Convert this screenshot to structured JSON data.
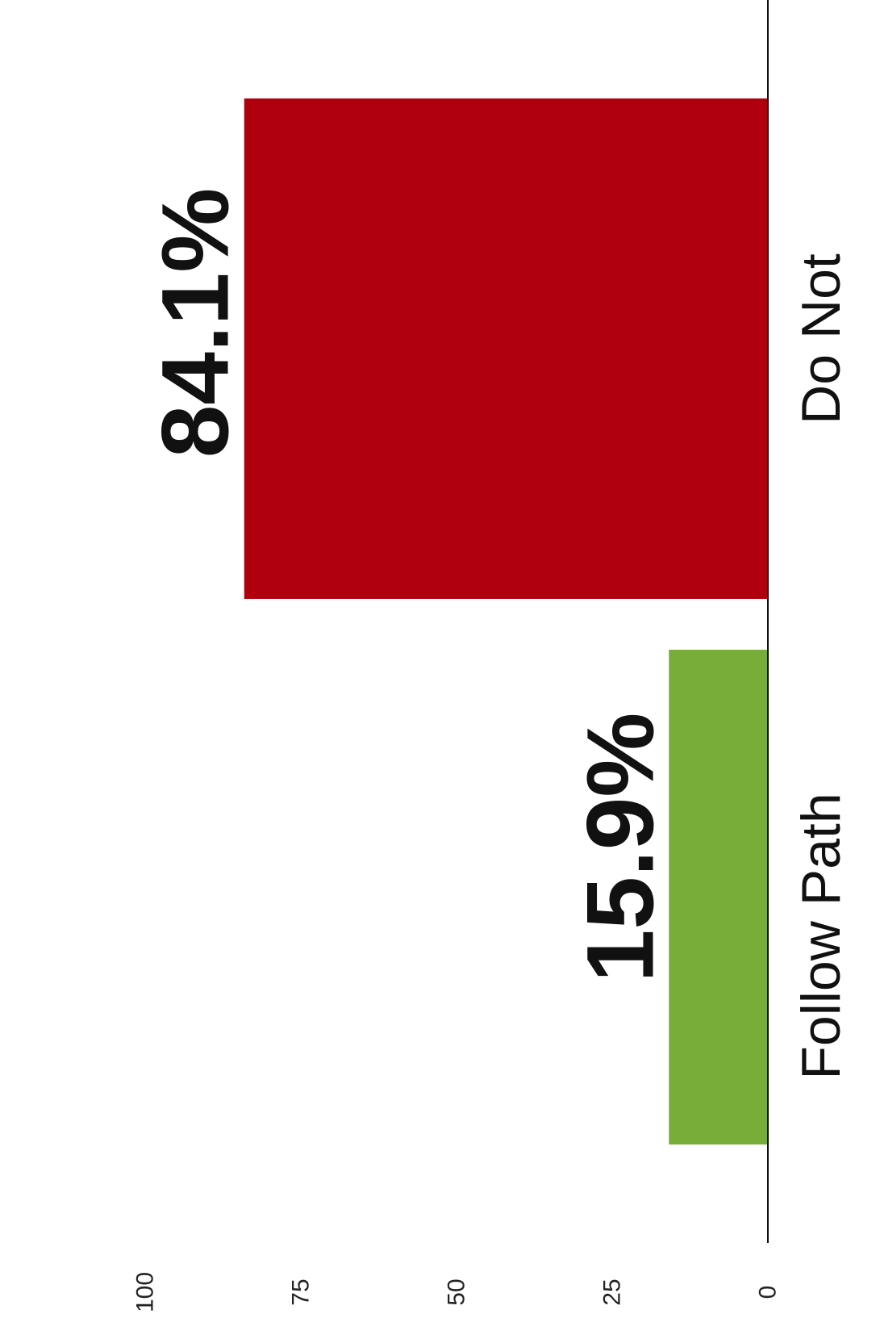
{
  "chart_data": {
    "type": "bar",
    "orientation": "rotated-90",
    "categories": [
      "Follow Path",
      "Do Not"
    ],
    "values": [
      15.9,
      84.1
    ],
    "data_labels": [
      "15.9%",
      "84.1%"
    ],
    "colors": [
      "#78ad3a",
      "#b0000e"
    ],
    "ylim": [
      0,
      100
    ],
    "yticks": [
      "0",
      "25",
      "50",
      "75",
      "100"
    ],
    "grid": false,
    "legend": "none"
  }
}
